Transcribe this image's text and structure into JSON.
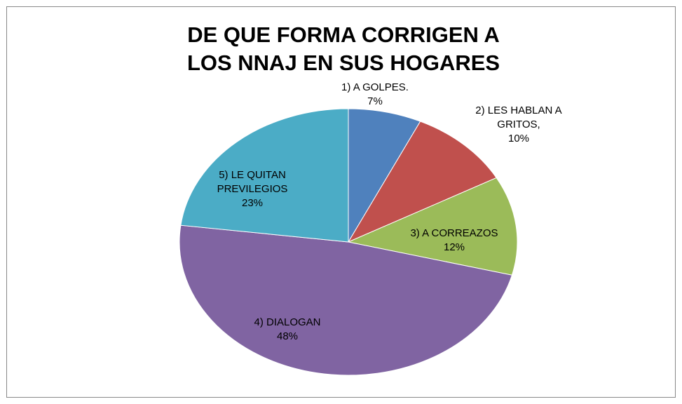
{
  "chart_data": {
    "type": "pie",
    "title": "DE QUE FORMA CORRIGEN A LOS NNAJ EN SUS HOGARES",
    "categories": [
      "1) A GOLPES.",
      "2) LES HABLAN A GRITOS,",
      "3) A CORREAZOS",
      "4) DIALOGAN",
      "5) LE QUITAN PREVILEGIOS"
    ],
    "values": [
      7,
      10,
      12,
      48,
      23
    ],
    "value_labels": [
      "7%",
      "10%",
      "12%",
      "48%",
      "23%"
    ],
    "colors": [
      "#4f81bd",
      "#c0504d",
      "#9bbb59",
      "#8064a2",
      "#4bacc6"
    ]
  }
}
